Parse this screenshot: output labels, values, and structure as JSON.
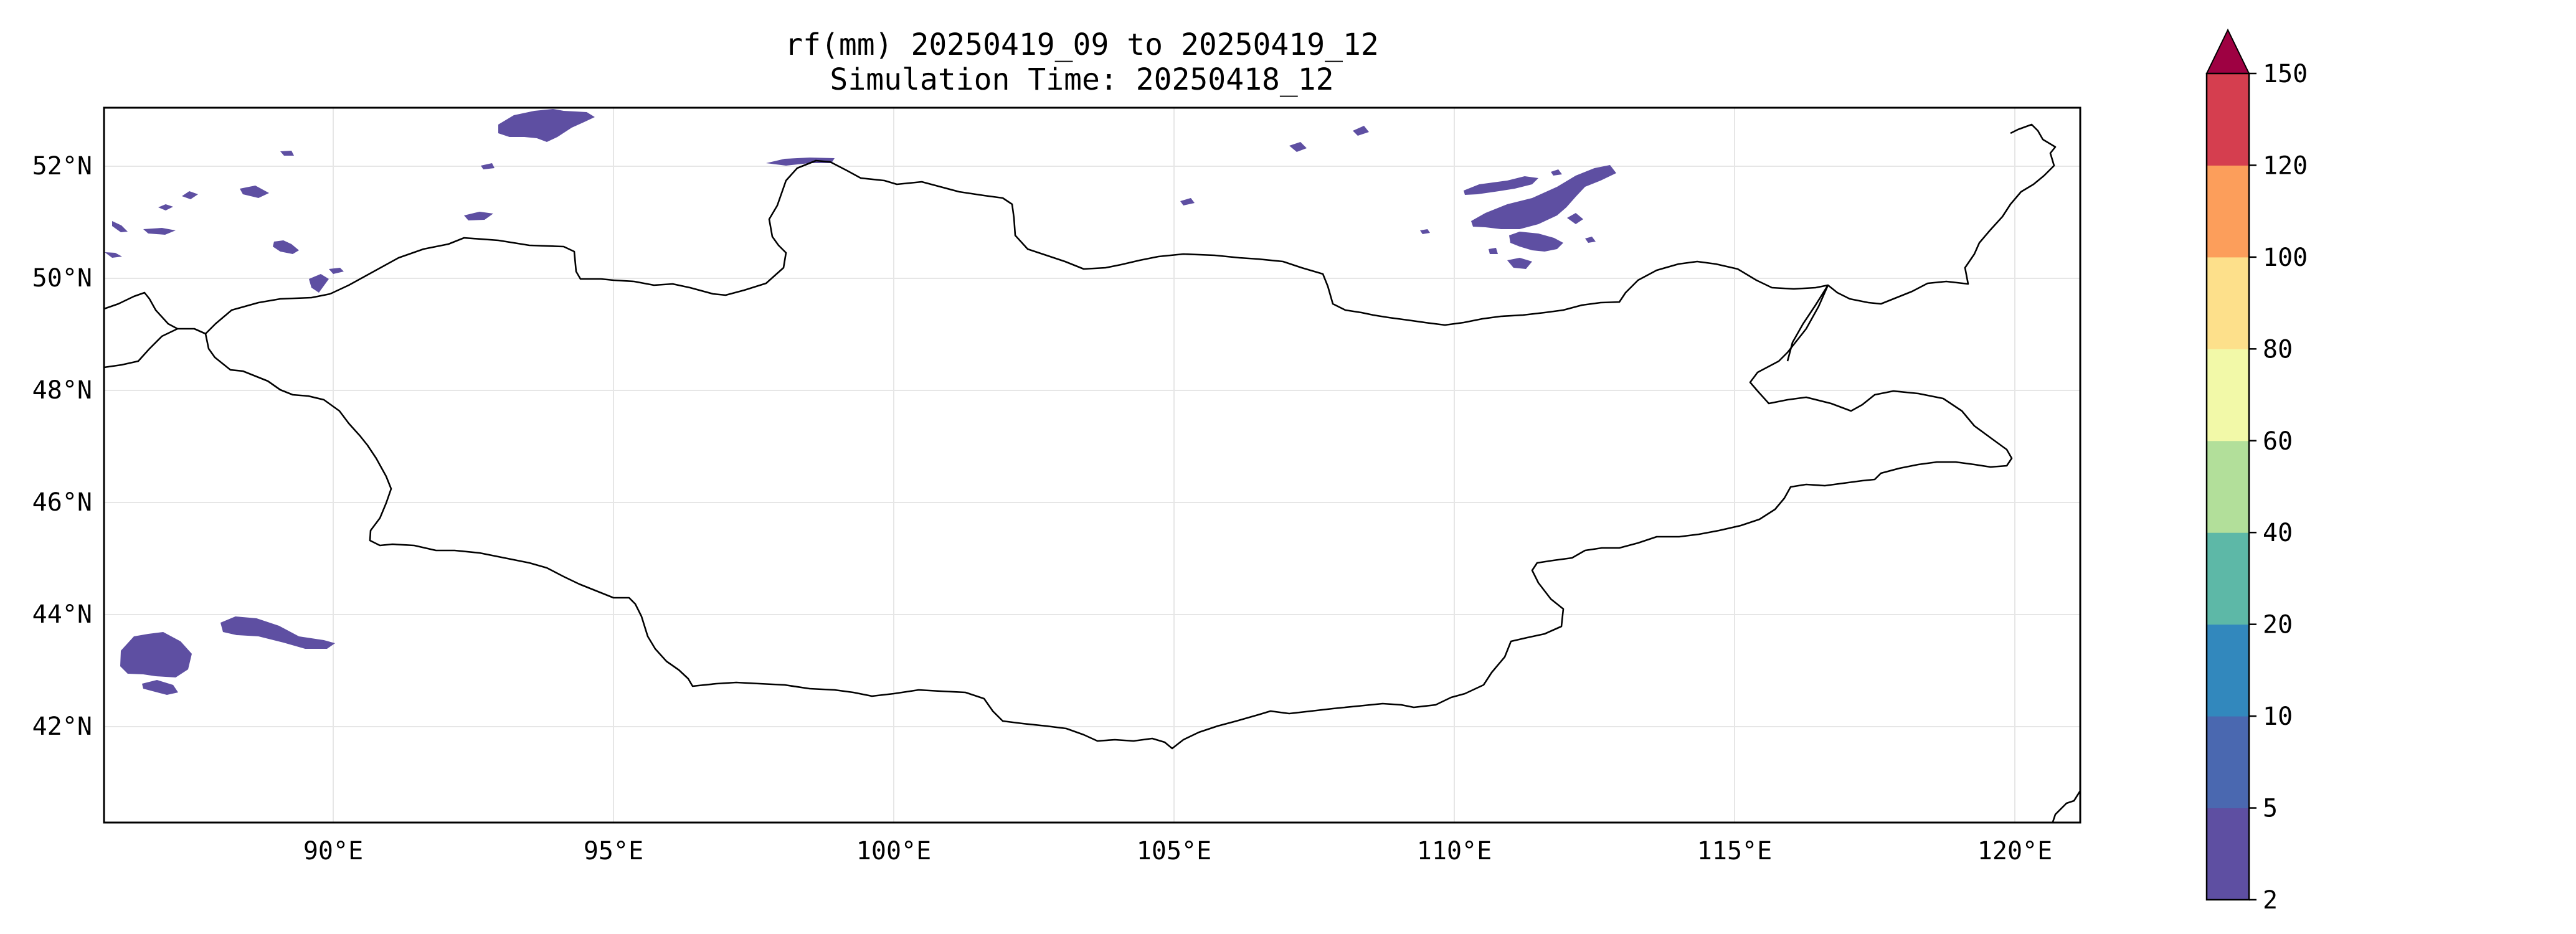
{
  "title": {
    "line1": "rf(mm) 20250419_09 to 20250419_12",
    "line2": "Simulation Time: 20250418_12"
  },
  "map": {
    "lon_range": [
      85.9,
      121.2
    ],
    "lat_range": [
      40.2,
      53.0
    ],
    "x_ticks": [
      "90°E",
      "95°E",
      "100°E",
      "105°E",
      "110°E",
      "115°E",
      "120°E"
    ],
    "y_ticks": [
      "52°N",
      "50°N",
      "48°N",
      "46°N",
      "44°N",
      "42°N"
    ],
    "gridlines": true,
    "projection": "PlateCarree",
    "features": [
      "country borders",
      "precipitation contours"
    ]
  },
  "colorbar": {
    "levels": [
      "2",
      "5",
      "10",
      "20",
      "40",
      "60",
      "80",
      "100",
      "120",
      "150"
    ],
    "colors": [
      "#5e4fa2",
      "#4a68b0",
      "#3288bd",
      "#5db8a7",
      "#b2df9a",
      "#f2f9a8",
      "#fde08b",
      "#fc9e5b",
      "#d53e4f"
    ],
    "extend_color": "#9e0142",
    "extend": "max",
    "position": "right"
  }
}
